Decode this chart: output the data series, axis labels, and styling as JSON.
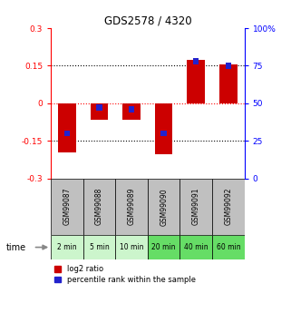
{
  "title": "GDS2578 / 4320",
  "samples": [
    "GSM99087",
    "GSM99088",
    "GSM99089",
    "GSM99090",
    "GSM99091",
    "GSM99092"
  ],
  "time_labels": [
    "2 min",
    "5 min",
    "10 min",
    "20 min",
    "40 min",
    "60 min"
  ],
  "log2_ratio": [
    -0.195,
    -0.065,
    -0.065,
    -0.205,
    0.175,
    0.155
  ],
  "percentile_rank": [
    30,
    47,
    46,
    30,
    78,
    75
  ],
  "ylim_left": [
    -0.3,
    0.3
  ],
  "ylim_right": [
    0,
    100
  ],
  "yticks_left": [
    -0.3,
    -0.15,
    0,
    0.15,
    0.3
  ],
  "ytick_labels_left": [
    "-0.3",
    "-0.15",
    "0",
    "0.15",
    "0.3"
  ],
  "yticks_right": [
    0,
    25,
    50,
    75,
    100
  ],
  "ytick_labels_right": [
    "0",
    "25",
    "50",
    "75",
    "100%"
  ],
  "bar_width": 0.55,
  "blue_bar_width": 0.18,
  "red_color": "#cc0000",
  "blue_color": "#2222cc",
  "sample_bg_color": "#c0c0c0",
  "time_bg_colors_light": "#ccf5cc",
  "time_bg_colors_dark": "#66dd66",
  "time_split": 3,
  "legend_items": [
    "log2 ratio",
    "percentile rank within the sample"
  ]
}
